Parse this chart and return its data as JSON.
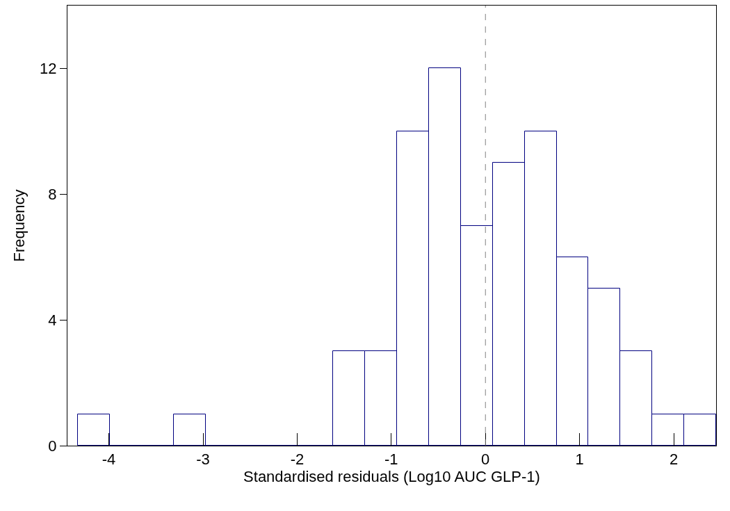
{
  "chart_data": {
    "type": "histogram",
    "xlabel": "Standardised residuals (Log10 AUC GLP-1)",
    "ylabel": "Frequency",
    "bins": [
      -4.33,
      -3.99,
      -3.65,
      -3.31,
      -2.97,
      -2.64,
      -2.3,
      -1.96,
      -1.62,
      -1.28,
      -0.94,
      -0.6,
      -0.26,
      0.08,
      0.42,
      0.76,
      1.09,
      1.43,
      1.77,
      2.11,
      2.45
    ],
    "values": [
      1,
      0,
      0,
      1,
      0,
      0,
      0,
      0,
      3,
      3,
      10,
      12,
      7,
      9,
      10,
      6,
      5,
      3,
      1,
      1
    ],
    "color": "#000080",
    "xlim": [
      -4.44,
      2.45
    ],
    "xticks": [
      -4,
      -3,
      -2,
      -1,
      0,
      1,
      2
    ],
    "ylim": [
      0,
      14
    ],
    "yticks": [
      0,
      4,
      8,
      12
    ],
    "ref_lines": [
      {
        "axis": "x",
        "value": 0,
        "color": "#808080",
        "line_style": "dashed"
      }
    ]
  }
}
